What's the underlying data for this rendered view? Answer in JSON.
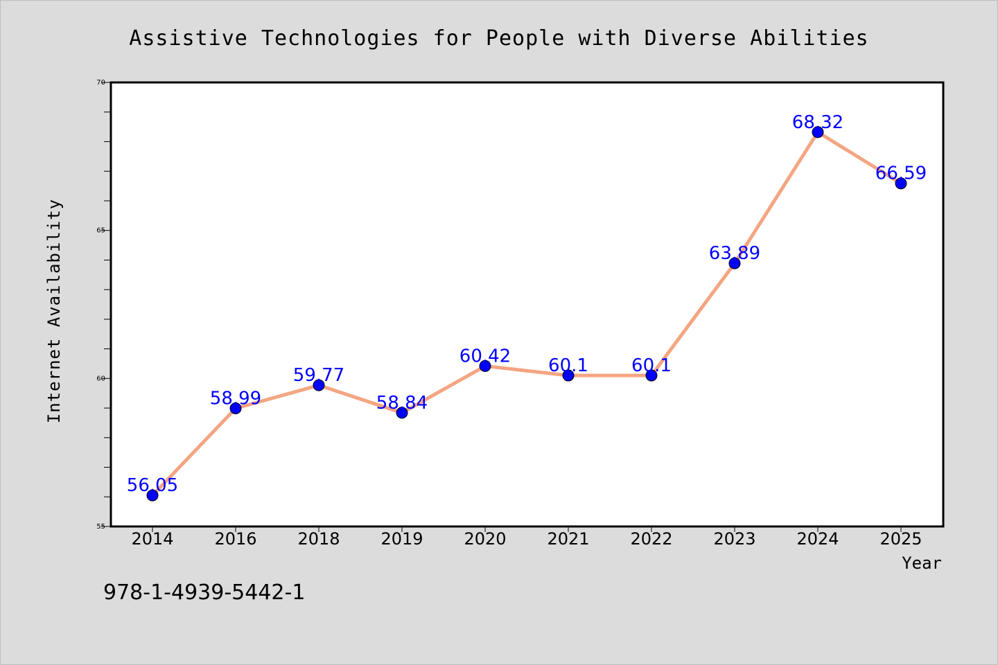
{
  "chart_data": {
    "type": "line",
    "title": "Assistive Technologies for People with Diverse Abilities",
    "xlabel": "Year",
    "ylabel": "Internet Availability",
    "categories": [
      "2014",
      "2016",
      "2018",
      "2019",
      "2020",
      "2021",
      "2022",
      "2023",
      "2024",
      "2025"
    ],
    "values": [
      56.05,
      58.99,
      59.77,
      58.84,
      60.42,
      60.1,
      60.1,
      63.89,
      68.32,
      66.59
    ],
    "data_labels": [
      "56.05",
      "58.99",
      "59.77",
      "58.84",
      "60.42",
      "60.1",
      "60.1",
      "63.89",
      "68.32",
      "66.59"
    ],
    "ylim": [
      55,
      70
    ],
    "yticks": [
      55,
      60,
      65,
      70
    ],
    "grid": false,
    "legend": "none",
    "colors": {
      "line": "#f4a582",
      "marker": "#0000ff",
      "data_label": "#0000ff",
      "background": "#dcdcdc",
      "plot_background": "#ffffff"
    }
  },
  "footer_text": "978-1-4939-5442-1"
}
